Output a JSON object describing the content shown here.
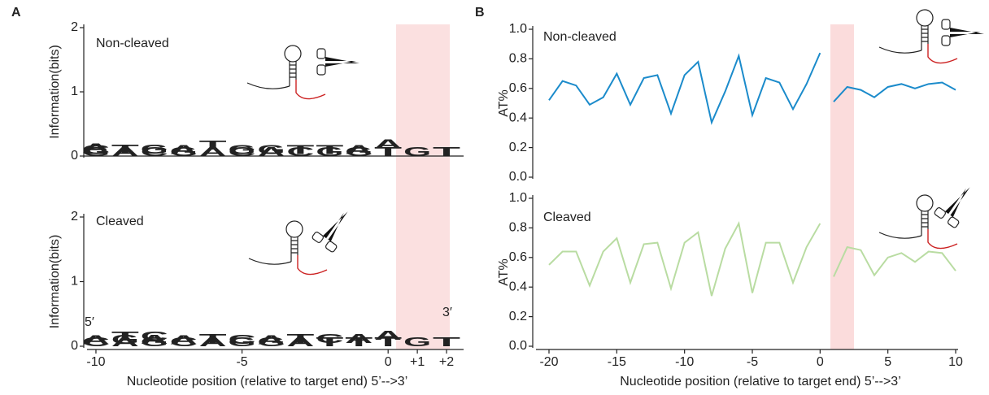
{
  "panels": [
    "A",
    "B"
  ],
  "chart_data": [
    {
      "type": "logo",
      "title": "Non-cleaved",
      "ylabel": "Information(bits)",
      "ylim": [
        0,
        2
      ],
      "yticks": [
        0,
        1,
        2
      ],
      "xlim": [
        -10.5,
        2.5
      ],
      "base_colors": {
        "A": "#3ba43b",
        "C": "#27359a",
        "G": "#f2a51f",
        "T": "#cc2222"
      },
      "stacks": [
        {
          "position": -10,
          "letters": [
            {
              "base": "G",
              "bits": 0.03
            },
            {
              "base": "C",
              "bits": 0.03
            },
            {
              "base": "A",
              "bits": 0.1
            }
          ]
        },
        {
          "position": -9,
          "letters": [
            {
              "base": "A",
              "bits": 0.04
            },
            {
              "base": "T",
              "bits": 0.35
            }
          ]
        },
        {
          "position": -8,
          "letters": [
            {
              "base": "C",
              "bits": 0.04
            },
            {
              "base": "G",
              "bits": 0.08
            }
          ]
        },
        {
          "position": -7,
          "letters": [
            {
              "base": "G",
              "bits": 0.03
            },
            {
              "base": "A",
              "bits": 0.05
            }
          ]
        },
        {
          "position": -6,
          "letters": [
            {
              "base": "A",
              "bits": 0.1
            },
            {
              "base": "T",
              "bits": 0.35
            }
          ]
        },
        {
          "position": -5,
          "letters": [
            {
              "base": "C",
              "bits": 0.03
            },
            {
              "base": "G",
              "bits": 0.05
            }
          ]
        },
        {
          "position": -4,
          "letters": [
            {
              "base": "A",
              "bits": 0.03
            },
            {
              "base": "G",
              "bits": 0.03
            }
          ]
        },
        {
          "position": -3,
          "letters": [
            {
              "base": "C",
              "bits": 0.03
            },
            {
              "base": "T",
              "bits": 0.1
            }
          ]
        },
        {
          "position": -2,
          "letters": [
            {
              "base": "G",
              "bits": 0.03
            },
            {
              "base": "T",
              "bits": 0.05
            }
          ]
        },
        {
          "position": -1,
          "letters": [
            {
              "base": "G",
              "bits": 0.03
            },
            {
              "base": "A",
              "bits": 0.15
            }
          ]
        },
        {
          "position": 0,
          "letters": [
            {
              "base": "T",
              "bits": 0.12
            },
            {
              "base": "A",
              "bits": 0.25
            }
          ]
        },
        {
          "position": 1,
          "letters": [
            {
              "base": "G",
              "bits": 0.02
            }
          ]
        },
        {
          "position": 2,
          "letters": [
            {
              "base": "T",
              "bits": 0.02
            }
          ]
        }
      ]
    },
    {
      "type": "logo",
      "title": "Cleaved",
      "ylabel": "Information(bits)",
      "xlabel": "Nucleotide position (relative to target end) 5’-->3’",
      "annotations": [
        "5′",
        "3′"
      ],
      "ylim": [
        0,
        2
      ],
      "yticks": [
        0,
        1,
        2
      ],
      "xlim": [
        -10.5,
        2.5
      ],
      "xticks": [
        -10,
        -5,
        0,
        {
          "value": 1,
          "label": "+1"
        },
        {
          "value": 2,
          "label": "+2"
        }
      ],
      "base_colors": {
        "A": "#3ba43b",
        "C": "#27359a",
        "G": "#f2a51f",
        "T": "#cc2222"
      },
      "stacks": [
        {
          "position": -10,
          "letters": [
            {
              "base": "C",
              "bits": 0.03
            },
            {
              "base": "A",
              "bits": 0.05
            }
          ]
        },
        {
          "position": -9,
          "letters": [
            {
              "base": "A",
              "bits": 0.04
            },
            {
              "base": "G",
              "bits": 0.05
            },
            {
              "base": "T",
              "bits": 0.45
            }
          ]
        },
        {
          "position": -8,
          "letters": [
            {
              "base": "G",
              "bits": 0.04
            },
            {
              "base": "A",
              "bits": 0.05
            },
            {
              "base": "C",
              "bits": 0.3
            }
          ]
        },
        {
          "position": -7,
          "letters": [
            {
              "base": "C",
              "bits": 0.03
            },
            {
              "base": "A",
              "bits": 0.05
            }
          ]
        },
        {
          "position": -6,
          "letters": [
            {
              "base": "A",
              "bits": 0.05
            },
            {
              "base": "T",
              "bits": 0.45
            }
          ]
        },
        {
          "position": -5,
          "letters": [
            {
              "base": "G",
              "bits": 0.04
            },
            {
              "base": "C",
              "bits": 0.3
            }
          ]
        },
        {
          "position": -4,
          "letters": [
            {
              "base": "G",
              "bits": 0.03
            },
            {
              "base": "A",
              "bits": 0.05
            }
          ]
        },
        {
          "position": -3,
          "letters": [
            {
              "base": "A",
              "bits": 0.05
            },
            {
              "base": "T",
              "bits": 0.2
            }
          ]
        },
        {
          "position": -2,
          "letters": [
            {
              "base": "T",
              "bits": 0.05
            },
            {
              "base": "C",
              "bits": 0.2
            }
          ]
        },
        {
          "position": -1,
          "letters": [
            {
              "base": "T",
              "bits": 0.05
            },
            {
              "base": "A",
              "bits": 0.25
            }
          ]
        },
        {
          "position": 0,
          "letters": [
            {
              "base": "T",
              "bits": 0.1
            },
            {
              "base": "A",
              "bits": 0.25
            }
          ]
        },
        {
          "position": 1,
          "letters": [
            {
              "base": "G",
              "bits": 0.02
            }
          ]
        },
        {
          "position": 2,
          "letters": [
            {
              "base": "T",
              "bits": 0.04
            }
          ]
        }
      ]
    },
    {
      "type": "line",
      "title": "Non-cleaved",
      "ylabel": "AT%",
      "ylim": [
        0,
        1
      ],
      "xlim": [
        -20,
        10
      ],
      "yticks": [
        {
          "value": 0,
          "label": "0.0"
        },
        {
          "value": 0.2,
          "label": "0.2"
        },
        {
          "value": 0.4,
          "label": "0.4"
        },
        {
          "value": 0.6,
          "label": "0.6"
        },
        {
          "value": 0.8,
          "label": "0.8"
        },
        {
          "value": 1,
          "label": "1.0"
        }
      ],
      "series": [
        {
          "color": "#1b8bcb",
          "x": [
            -20,
            -19,
            -18,
            -17,
            -16,
            -15,
            -14,
            -13,
            -12,
            -11,
            -10,
            -9,
            -8,
            -7,
            -6,
            -5,
            -4,
            -3,
            -2,
            -1,
            0
          ],
          "values": [
            0.52,
            0.65,
            0.62,
            0.49,
            0.54,
            0.7,
            0.49,
            0.67,
            0.69,
            0.43,
            0.69,
            0.78,
            0.37,
            0.58,
            0.82,
            0.42,
            0.67,
            0.64,
            0.46,
            0.63,
            0.84
          ]
        },
        {
          "color": "#1b8bcb",
          "x": [
            1,
            2,
            3,
            4,
            5,
            6,
            7,
            8,
            9,
            10
          ],
          "values": [
            0.51,
            0.61,
            0.59,
            0.54,
            0.61,
            0.63,
            0.6,
            0.63,
            0.64,
            0.59
          ]
        }
      ]
    },
    {
      "type": "line",
      "title": "Cleaved",
      "ylabel": "AT%",
      "xlabel": "Nucleotide position (relative to target end) 5’-->3’",
      "ylim": [
        0,
        1
      ],
      "xlim": [
        -20,
        10
      ],
      "xticks": [
        -20,
        -15,
        -10,
        -5,
        0,
        5,
        10
      ],
      "yticks": [
        {
          "value": 0,
          "label": "0.0"
        },
        {
          "value": 0.2,
          "label": "0.2"
        },
        {
          "value": 0.4,
          "label": "0.4"
        },
        {
          "value": 0.6,
          "label": "0.6"
        },
        {
          "value": 0.8,
          "label": "0.8"
        },
        {
          "value": 1,
          "label": "1.0"
        }
      ],
      "series": [
        {
          "color": "#b9dca2",
          "x": [
            -20,
            -19,
            -18,
            -17,
            -16,
            -15,
            -14,
            -13,
            -12,
            -11,
            -10,
            -9,
            -8,
            -7,
            -6,
            -5,
            -4,
            -3,
            -2,
            -1,
            0
          ],
          "values": [
            0.55,
            0.64,
            0.64,
            0.41,
            0.64,
            0.73,
            0.43,
            0.69,
            0.7,
            0.39,
            0.7,
            0.77,
            0.34,
            0.66,
            0.83,
            0.36,
            0.7,
            0.7,
            0.43,
            0.67,
            0.83
          ]
        },
        {
          "color": "#b9dca2",
          "x": [
            1,
            2,
            3,
            4,
            5,
            6,
            7,
            8,
            9,
            10
          ],
          "values": [
            0.47,
            0.67,
            0.65,
            0.48,
            0.6,
            0.63,
            0.57,
            0.64,
            0.63,
            0.51
          ]
        }
      ]
    }
  ]
}
